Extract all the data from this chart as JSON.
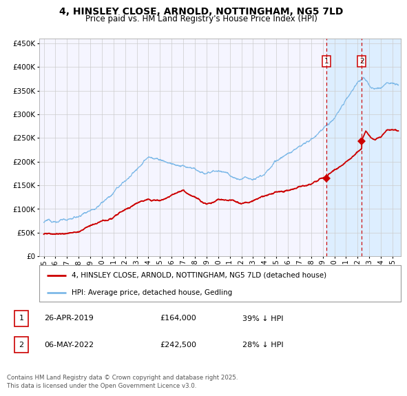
{
  "title_line1": "4, HINSLEY CLOSE, ARNOLD, NOTTINGHAM, NG5 7LD",
  "title_line2": "Price paid vs. HM Land Registry's House Price Index (HPI)",
  "hpi_label": "HPI: Average price, detached house, Gedling",
  "property_label": "4, HINSLEY CLOSE, ARNOLD, NOTTINGHAM, NG5 7LD (detached house)",
  "hpi_color": "#7db9e8",
  "property_color": "#cc0000",
  "shade_color": "#ddeeff",
  "dashed_color": "#cc0000",
  "transaction1_date": "26-APR-2019",
  "transaction1_price": "£164,000",
  "transaction1_hpi": "39% ↓ HPI",
  "transaction2_date": "06-MAY-2022",
  "transaction2_price": "£242,500",
  "transaction2_hpi": "28% ↓ HPI",
  "footnote": "Contains HM Land Registry data © Crown copyright and database right 2025.\nThis data is licensed under the Open Government Licence v3.0.",
  "ylim": [
    0,
    460000
  ],
  "yticks": [
    0,
    50000,
    100000,
    150000,
    200000,
    250000,
    300000,
    350000,
    400000,
    450000
  ],
  "background": "#ffffff",
  "plot_bg": "#f5f5ff",
  "grid_color": "#cccccc",
  "transaction1_x": 2019.33,
  "transaction2_x": 2022.35,
  "transaction1_prop_y": 164000,
  "transaction2_prop_y": 242500,
  "xlim_left": 1994.6,
  "xlim_right": 2025.7
}
